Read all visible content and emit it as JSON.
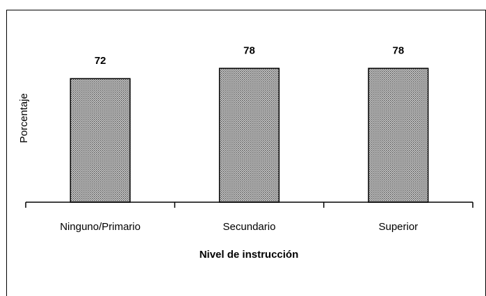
{
  "chart_data": {
    "type": "bar",
    "categories": [
      "Ninguno/Primario",
      "Secundario",
      "Superior"
    ],
    "values": [
      72,
      78,
      78
    ],
    "ylim": [
      0,
      100
    ],
    "xlabel": "Nivel de instrucción",
    "ylabel": "Porcentaje",
    "color": "#808080"
  }
}
